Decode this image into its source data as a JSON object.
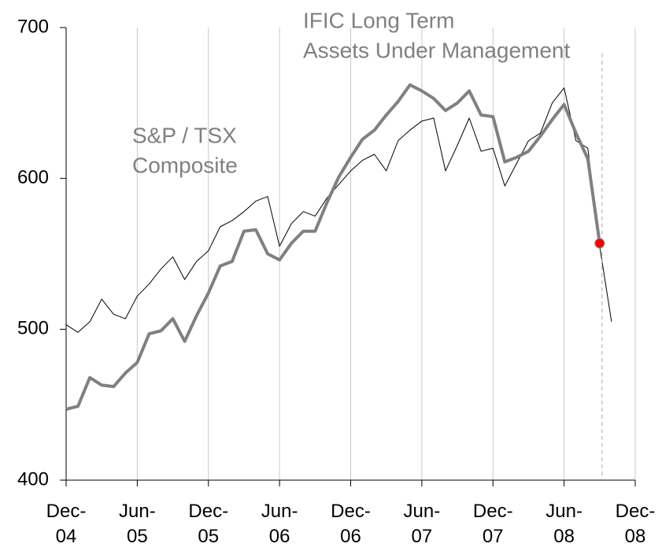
{
  "chart_data": {
    "type": "line",
    "annotations": [
      "IFIC Long Term",
      "Assets Under Management",
      "S&P / TSX",
      "Composite"
    ],
    "x": [
      "2004-12",
      "2005-01",
      "2005-02",
      "2005-03",
      "2005-04",
      "2005-05",
      "2005-06",
      "2005-07",
      "2005-08",
      "2005-09",
      "2005-10",
      "2005-11",
      "2005-12",
      "2006-01",
      "2006-02",
      "2006-03",
      "2006-04",
      "2006-05",
      "2006-06",
      "2006-07",
      "2006-08",
      "2006-09",
      "2006-10",
      "2006-11",
      "2006-12",
      "2007-01",
      "2007-02",
      "2007-03",
      "2007-04",
      "2007-05",
      "2007-06",
      "2007-07",
      "2007-08",
      "2007-09",
      "2007-10",
      "2007-11",
      "2007-12",
      "2008-01",
      "2008-02",
      "2008-03",
      "2008-04",
      "2008-05",
      "2008-06",
      "2008-07",
      "2008-08",
      "2008-09",
      "2008-10"
    ],
    "series": [
      {
        "name": "S&P / TSX Composite",
        "color": "#000000",
        "values": [
          503,
          498,
          505,
          520,
          510,
          507,
          522,
          530,
          540,
          548,
          533,
          545,
          552,
          568,
          572,
          578,
          585,
          588,
          555,
          570,
          578,
          575,
          587,
          596,
          605,
          612,
          616,
          605,
          625,
          632,
          638,
          640,
          605,
          622,
          640,
          618,
          620,
          595,
          610,
          625,
          630,
          650,
          660,
          625,
          620,
          555,
          505
        ]
      },
      {
        "name": "IFIC Long Term Assets Under Management",
        "color": "#808080",
        "values": [
          447,
          449,
          468,
          463,
          462,
          471,
          478,
          497,
          499,
          507,
          492,
          509,
          524,
          542,
          545,
          565,
          566,
          550,
          546,
          557,
          565,
          565,
          584,
          601,
          614,
          626,
          632,
          642,
          651,
          662,
          658,
          653,
          645,
          650,
          658,
          642,
          641,
          611,
          614,
          618,
          628,
          639,
          649,
          630,
          613,
          557,
          null
        ]
      }
    ],
    "marker_color": "#ff0000",
    "xlim": [
      "2004-12",
      "2008-12"
    ],
    "xticks": [
      {
        "value": "2004-12",
        "label": "Dec-04"
      },
      {
        "value": "2005-06",
        "label": "Jun-05"
      },
      {
        "value": "2005-12",
        "label": "Dec-05"
      },
      {
        "value": "2006-06",
        "label": "Jun-06"
      },
      {
        "value": "2006-12",
        "label": "Dec-06"
      },
      {
        "value": "2007-06",
        "label": "Jun-07"
      },
      {
        "value": "2007-12",
        "label": "Dec-07"
      },
      {
        "value": "2008-06",
        "label": "Jun-08"
      },
      {
        "value": "2008-12",
        "label": "Dec-08"
      }
    ],
    "ylim": [
      400,
      700
    ],
    "yticks": [
      400,
      500,
      600,
      700
    ],
    "grid": true
  }
}
